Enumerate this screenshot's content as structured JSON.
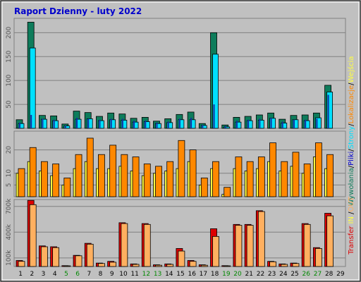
{
  "title": "Raport Dzienny -  luty 2022",
  "colors": {
    "background": "#c0c0c0",
    "plot_bg": "#c0c0c0",
    "title": "#0000cc",
    "wizyty": "#0e7c5b",
    "strony": "#00e0ff",
    "pliki": "#1030a0",
    "wywolania": "#0e7c5b",
    "transfer": "#dd0000",
    "out": "#ffb060",
    "wejscia": "#ffff40",
    "lokalizacje": "#ff8800",
    "weekend_tick": "#008800"
  },
  "side_labels": {
    "top": [
      {
        "text": "Wywołania",
        "color": "#0e7c5b"
      },
      {
        "text": "/",
        "color": "#000000"
      },
      {
        "text": "Pliki",
        "color": "#0000cc"
      },
      {
        "text": "/",
        "color": "#000000"
      },
      {
        "text": "Strony",
        "color": "#00e0ff"
      },
      {
        "text": "/",
        "color": "#000000"
      },
      {
        "text": "Lokalizacje",
        "color": "#ff8800"
      },
      {
        "text": "/",
        "color": "#000000"
      },
      {
        "text": "Wejścia",
        "color": "#ffff40"
      }
    ],
    "bottom": [
      {
        "text": "Transfer",
        "color": "#dd0000"
      },
      {
        "text": " IN ",
        "color": "#ffff40"
      },
      {
        "text": "/",
        "color": "#000000"
      },
      {
        "text": "OUT",
        "color": "#ffb060"
      }
    ]
  },
  "chart_data": [
    {
      "type": "bar",
      "panel": "hits",
      "categories": [
        "1",
        "2",
        "3",
        "4",
        "5",
        "6",
        "7",
        "8",
        "9",
        "10",
        "11",
        "12",
        "13",
        "14",
        "15",
        "16",
        "17",
        "18",
        "19",
        "20",
        "21",
        "22",
        "23",
        "24",
        "25",
        "26",
        "27",
        "28",
        "29"
      ],
      "weekend_categories": [
        "5",
        "6",
        "12",
        "13",
        "19",
        "20",
        "26",
        "27"
      ],
      "ylim": [
        0,
        230
      ],
      "yticks": [
        50,
        100,
        150,
        200
      ],
      "series": [
        {
          "name": "Wywołania",
          "values": [
            18,
            222,
            27,
            26,
            9,
            36,
            33,
            25,
            32,
            30,
            21,
            23,
            15,
            20,
            29,
            34,
            10,
            200,
            7,
            23,
            25,
            28,
            32,
            19,
            27,
            28,
            32,
            90,
            0
          ]
        },
        {
          "name": "Pliki",
          "values": [
            12,
            28,
            20,
            18,
            6,
            22,
            20,
            18,
            20,
            20,
            16,
            16,
            12,
            14,
            20,
            22,
            7,
            50,
            5,
            16,
            18,
            20,
            22,
            14,
            18,
            18,
            20,
            70,
            0
          ]
        },
        {
          "name": "Strony",
          "values": [
            10,
            168,
            19,
            16,
            5,
            19,
            20,
            16,
            18,
            17,
            13,
            14,
            10,
            12,
            18,
            18,
            6,
            155,
            3,
            13,
            16,
            17,
            21,
            11,
            18,
            16,
            22,
            76,
            0
          ]
        }
      ]
    },
    {
      "type": "bar",
      "panel": "visits",
      "categories": [
        "1",
        "2",
        "3",
        "4",
        "5",
        "6",
        "7",
        "8",
        "9",
        "10",
        "11",
        "12",
        "13",
        "14",
        "15",
        "16",
        "17",
        "18",
        "19",
        "20",
        "21",
        "22",
        "23",
        "24",
        "25",
        "26",
        "27",
        "28",
        "29"
      ],
      "ylim": [
        0,
        28
      ],
      "yticks": [
        5,
        10,
        20
      ],
      "series": [
        {
          "name": "Wejścia",
          "values": [
            10,
            15,
            11,
            9,
            5,
            12,
            15,
            12,
            12,
            13,
            11,
            9,
            10,
            11,
            12,
            15,
            5,
            12,
            1,
            12,
            11,
            12,
            15,
            11,
            13,
            10,
            17,
            12,
            0
          ]
        },
        {
          "name": "Lokalizacje",
          "values": [
            12,
            21,
            15,
            14,
            8,
            18,
            25,
            18,
            22,
            18,
            17,
            14,
            13,
            15,
            24,
            20,
            8,
            15,
            4,
            17,
            15,
            17,
            23,
            15,
            19,
            14,
            23,
            18,
            0
          ]
        }
      ]
    },
    {
      "type": "bar",
      "panel": "transfer",
      "categories": [
        "1",
        "2",
        "3",
        "4",
        "5",
        "6",
        "7",
        "8",
        "9",
        "10",
        "11",
        "12",
        "13",
        "14",
        "15",
        "16",
        "17",
        "18",
        "19",
        "20",
        "21",
        "22",
        "23",
        "24",
        "25",
        "26",
        "27",
        "28",
        "29"
      ],
      "ylim": [
        0,
        780000
      ],
      "ytick_labels": [
        "100k",
        "400k",
        "700k"
      ],
      "yticks": [
        100000,
        400000,
        700000
      ],
      "series": [
        {
          "name": "Transfer IN",
          "values": [
            70000,
            770000,
            240000,
            230000,
            10000,
            130000,
            270000,
            40000,
            60000,
            510000,
            30000,
            500000,
            20000,
            30000,
            210000,
            70000,
            20000,
            440000,
            10000,
            490000,
            490000,
            650000,
            60000,
            30000,
            40000,
            500000,
            220000,
            620000,
            0
          ]
        },
        {
          "name": "Transfer OUT",
          "values": [
            60000,
            720000,
            230000,
            220000,
            8000,
            125000,
            260000,
            35000,
            50000,
            500000,
            25000,
            490000,
            15000,
            25000,
            180000,
            60000,
            15000,
            350000,
            8000,
            480000,
            480000,
            640000,
            55000,
            25000,
            35000,
            490000,
            210000,
            590000,
            0
          ]
        }
      ]
    }
  ]
}
